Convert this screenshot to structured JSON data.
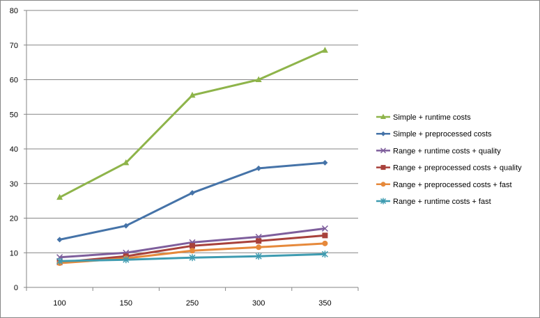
{
  "chart_data": {
    "type": "line",
    "categories": [
      "100",
      "150",
      "250",
      "300",
      "350"
    ],
    "ylim": [
      0,
      80
    ],
    "yticks": [
      0,
      10,
      20,
      30,
      40,
      50,
      60,
      70,
      80
    ],
    "grid": "horizontal",
    "legend_position": "right",
    "series": [
      {
        "name": "Simple + runtime costs",
        "values": [
          26,
          36,
          55.5,
          60,
          68.5
        ],
        "color": "#8EB44A",
        "marker": "triangle"
      },
      {
        "name": "Simple + preprocessed costs",
        "values": [
          13.8,
          17.8,
          27.3,
          34.4,
          36
        ],
        "color": "#4573A8",
        "marker": "diamond"
      },
      {
        "name": "Range + runtime costs + quality",
        "values": [
          8.7,
          10,
          13,
          14.6,
          17
        ],
        "color": "#7E5E9C",
        "marker": "x"
      },
      {
        "name": "Range + preprocessed costs + quality",
        "values": [
          7.2,
          9,
          12,
          13.4,
          15
        ],
        "color": "#A8413B",
        "marker": "square"
      },
      {
        "name": "Range + preprocessed costs + fast",
        "values": [
          7,
          8.4,
          10.6,
          11.6,
          12.7
        ],
        "color": "#E6893B",
        "marker": "circle"
      },
      {
        "name": "Range + runtime costs + fast",
        "values": [
          7.6,
          8,
          8.6,
          9,
          9.6
        ],
        "color": "#3E9BB0",
        "marker": "asterisk"
      }
    ]
  }
}
